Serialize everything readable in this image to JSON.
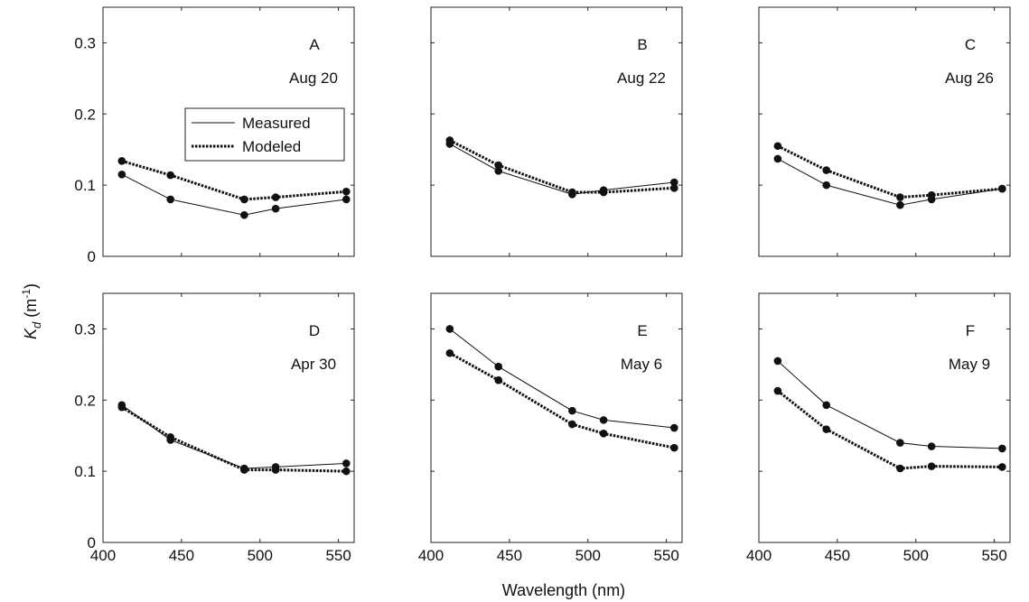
{
  "chart_data": {
    "type": "line",
    "xlabel": "Wavelength (nm)",
    "ylabel_main": "K",
    "ylabel_sub": "d",
    "ylabel_units": " (m",
    "ylabel_exp": "-1",
    "ylabel_close": ")",
    "xlim": [
      400,
      560
    ],
    "ylim": [
      0,
      0.35
    ],
    "xticks": [
      "400",
      "450",
      "500",
      "550"
    ],
    "yticks": [
      "0",
      "0.1",
      "0.2",
      "0.3"
    ],
    "x": [
      412,
      443,
      490,
      510,
      555
    ],
    "legend": {
      "position": "upper-center of panel A",
      "entries": [
        "Measured",
        "Modeled"
      ]
    },
    "panels": [
      {
        "letter": "A",
        "date": "Aug 20",
        "series": [
          {
            "name": "Measured",
            "style": "solid",
            "values": [
              0.115,
              0.08,
              0.058,
              0.067,
              0.08
            ]
          },
          {
            "name": "Modeled",
            "style": "dotted",
            "values": [
              0.134,
              0.114,
              0.08,
              0.083,
              0.091
            ]
          }
        ]
      },
      {
        "letter": "B",
        "date": "Aug 22",
        "series": [
          {
            "name": "Measured",
            "style": "solid",
            "values": [
              0.158,
              0.12,
              0.087,
              0.093,
              0.104
            ]
          },
          {
            "name": "Modeled",
            "style": "dotted",
            "values": [
              0.163,
              0.128,
              0.09,
              0.09,
              0.096
            ]
          }
        ]
      },
      {
        "letter": "C",
        "date": "Aug 26",
        "series": [
          {
            "name": "Measured",
            "style": "solid",
            "values": [
              0.137,
              0.1,
              0.072,
              0.08,
              0.095
            ]
          },
          {
            "name": "Modeled",
            "style": "dotted",
            "values": [
              0.155,
              0.121,
              0.083,
              0.086,
              0.095
            ]
          }
        ]
      },
      {
        "letter": "D",
        "date": "Apr 30",
        "series": [
          {
            "name": "Measured",
            "style": "solid",
            "values": [
              0.193,
              0.144,
              0.104,
              0.106,
              0.111
            ]
          },
          {
            "name": "Modeled",
            "style": "dotted",
            "values": [
              0.19,
              0.148,
              0.102,
              0.102,
              0.1
            ]
          }
        ]
      },
      {
        "letter": "E",
        "date": "May 6",
        "series": [
          {
            "name": "Measured",
            "style": "solid",
            "values": [
              0.3,
              0.247,
              0.185,
              0.172,
              0.161
            ]
          },
          {
            "name": "Modeled",
            "style": "dotted",
            "values": [
              0.266,
              0.228,
              0.166,
              0.153,
              0.133
            ]
          }
        ]
      },
      {
        "letter": "F",
        "date": "May 9",
        "series": [
          {
            "name": "Measured",
            "style": "solid",
            "values": [
              0.255,
              0.193,
              0.14,
              0.135,
              0.132
            ]
          },
          {
            "name": "Modeled",
            "style": "dotted",
            "values": [
              0.213,
              0.159,
              0.104,
              0.107,
              0.106
            ]
          }
        ]
      }
    ]
  }
}
